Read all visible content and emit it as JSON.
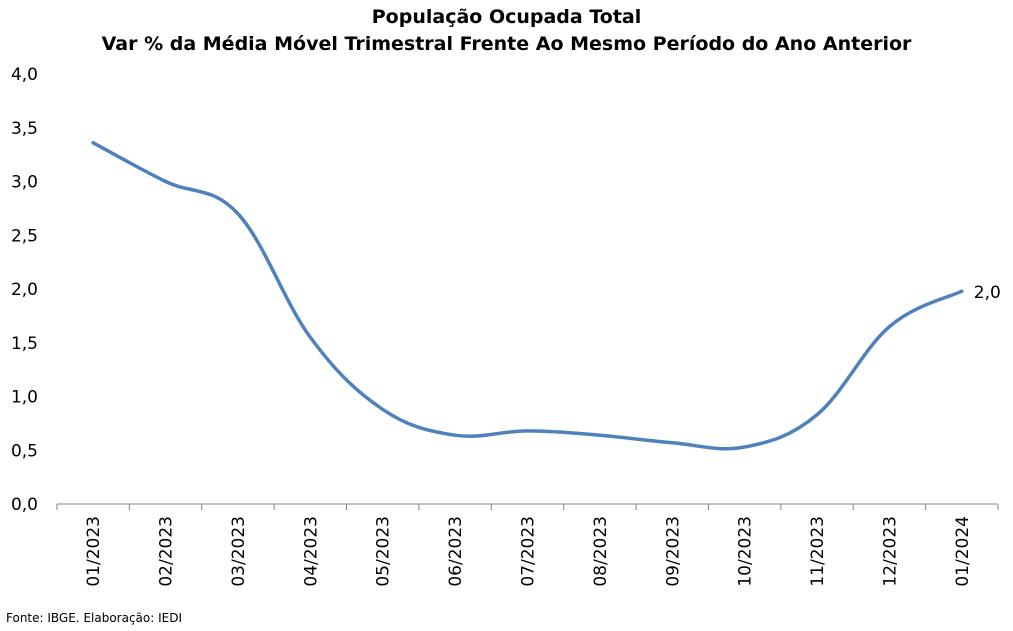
{
  "chart_data": {
    "type": "line",
    "title": "População Ocupada Total",
    "subtitle": "Var % da Média Móvel Trimestral Frente Ao Mesmo Período do Ano Anterior",
    "xlabel": "",
    "ylabel": "",
    "categories": [
      "01/2023",
      "02/2023",
      "03/2023",
      "04/2023",
      "05/2023",
      "06/2023",
      "07/2023",
      "08/2023",
      "09/2023",
      "10/2023",
      "11/2023",
      "12/2023",
      "01/2024"
    ],
    "series": [
      {
        "values": [
          3.36,
          3.0,
          2.7,
          1.55,
          0.88,
          0.64,
          0.68,
          0.64,
          0.57,
          0.53,
          0.83,
          1.65,
          1.98
        ]
      }
    ],
    "y_ticks": [
      "0,0",
      "0,5",
      "1,0",
      "1,5",
      "2,0",
      "2,5",
      "3,0",
      "3,5",
      "4,0"
    ],
    "ylim": [
      0,
      4
    ],
    "last_point_label": "2,0",
    "grid": false,
    "legend": "none",
    "line_color": "#4f81bd"
  },
  "source": "Fonte: IBGE. Elaboração: IEDI"
}
